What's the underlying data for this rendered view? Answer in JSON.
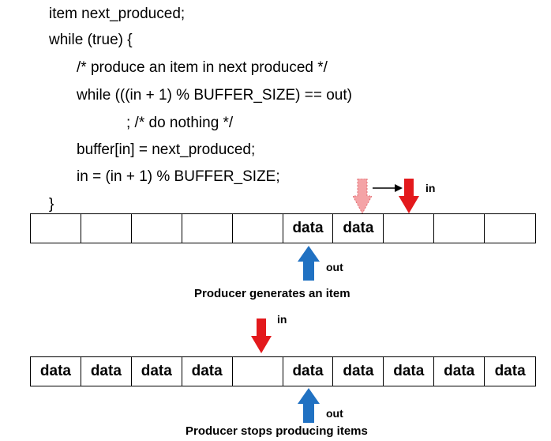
{
  "code": {
    "lines": [
      "item next_produced;",
      "while (true) {",
      "/* produce an item in next produced */",
      "while (((in + 1) % BUFFER_SIZE) == out)",
      "; /* do nothing */",
      "buffer[in] = next_produced;",
      "in = (in + 1) % BUFFER_SIZE;",
      "}"
    ]
  },
  "diagram1": {
    "cells": [
      "",
      "",
      "",
      "",
      "",
      "data",
      "data",
      "",
      "",
      ""
    ],
    "in_label": "in",
    "out_label": "out",
    "caption": "Producer generates an item"
  },
  "diagram2": {
    "cells": [
      "data",
      "data",
      "data",
      "data",
      "",
      "data",
      "data",
      "data",
      "data",
      "data"
    ],
    "in_label": "in",
    "out_label": "out",
    "caption": "Producer stops producing items"
  },
  "colors": {
    "in_arrow": "#e3191c",
    "in_arrow_old": "#f4a3a6",
    "out_arrow": "#2071c2"
  }
}
